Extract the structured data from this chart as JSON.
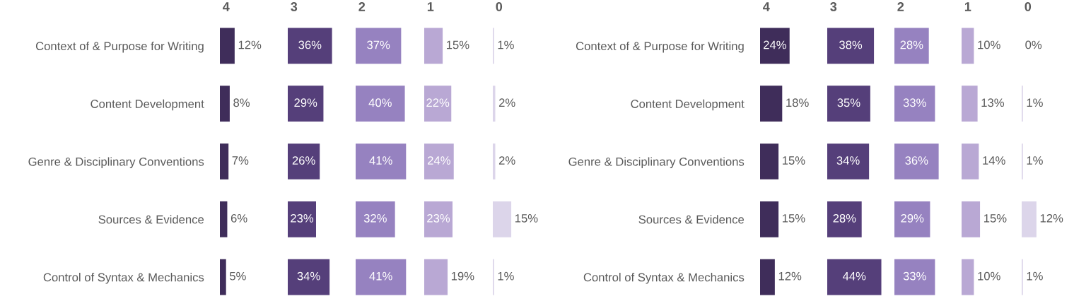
{
  "chart_data": [
    {
      "type": "bar",
      "orientation": "horizontal",
      "title": "4",
      "tick_labels": "y",
      "categories": [
        "Context of & Purpose for Writing",
        "Content Development",
        "Genre & Disciplinary Conventions",
        "Sources & Evidence",
        "Control of Syntax & Mechanics"
      ],
      "values": [
        12,
        8,
        7,
        6,
        5
      ],
      "value_labels": [
        "12%",
        "8%",
        "7%",
        "6%",
        "5%"
      ],
      "color": "#3f2d5a"
    },
    {
      "type": "bar",
      "orientation": "horizontal",
      "title": "3",
      "categories": [
        null,
        null,
        null,
        null,
        null
      ],
      "values": [
        36,
        29,
        26,
        23,
        34
      ],
      "value_labels": [
        "36%",
        "29%",
        "26%",
        "23%",
        "34%"
      ],
      "color": "#553f7a"
    },
    {
      "type": "bar",
      "orientation": "horizontal",
      "title": "2",
      "categories": [
        null,
        null,
        null,
        null,
        null
      ],
      "values": [
        37,
        40,
        41,
        32,
        41
      ],
      "value_labels": [
        "37%",
        "40%",
        "41%",
        "32%",
        "41%"
      ],
      "color": "#9682c0"
    },
    {
      "type": "bar",
      "orientation": "horizontal",
      "title": "1",
      "categories": [
        null,
        null,
        null,
        null,
        null
      ],
      "values": [
        15,
        22,
        24,
        23,
        19
      ],
      "value_labels": [
        "15%",
        "22%",
        "24%",
        "23%",
        "19%"
      ],
      "color": "#b9a8d4"
    },
    {
      "type": "bar",
      "orientation": "horizontal",
      "title": "0",
      "categories": [
        null,
        null,
        null,
        null,
        null
      ],
      "values": [
        1,
        2,
        2,
        15,
        1
      ],
      "value_labels": [
        "1%",
        "2%",
        "2%",
        "15%",
        "1%"
      ],
      "color": "#dcd5ea"
    },
    {
      "type": "bar",
      "orientation": "horizontal",
      "title": "4",
      "tick_labels": "y",
      "categories": [
        "Context of & Purpose for Writing",
        "Content Development",
        "Genre & Disciplinary Conventions",
        "Sources & Evidence",
        "Control of Syntax & Mechanics"
      ],
      "values": [
        24,
        18,
        15,
        15,
        12
      ],
      "value_labels": [
        "24%",
        "18%",
        "15%",
        "15%",
        "12%"
      ],
      "color": "#3f2d5a"
    },
    {
      "type": "bar",
      "orientation": "horizontal",
      "title": "3",
      "categories": [
        null,
        null,
        null,
        null,
        null
      ],
      "values": [
        38,
        35,
        34,
        28,
        44
      ],
      "value_labels": [
        "38%",
        "35%",
        "34%",
        "28%",
        "44%"
      ],
      "color": "#553f7a"
    },
    {
      "type": "bar",
      "orientation": "horizontal",
      "title": "2",
      "categories": [
        null,
        null,
        null,
        null,
        null
      ],
      "values": [
        28,
        33,
        36,
        29,
        33
      ],
      "value_labels": [
        "28%",
        "33%",
        "36%",
        "29%",
        "33%"
      ],
      "color": "#9682c0"
    },
    {
      "type": "bar",
      "orientation": "horizontal",
      "title": "1",
      "categories": [
        null,
        null,
        null,
        null,
        null
      ],
      "values": [
        10,
        13,
        14,
        15,
        10
      ],
      "value_labels": [
        "10%",
        "13%",
        "14%",
        "15%",
        "10%"
      ],
      "color": "#b9a8d4"
    },
    {
      "type": "bar",
      "orientation": "horizontal",
      "title": "0",
      "categories": [
        null,
        null,
        null,
        null,
        null
      ],
      "values": [
        0,
        1,
        1,
        12,
        1
      ],
      "value_labels": [
        "0%",
        "1%",
        "1%",
        "12%",
        "1%"
      ],
      "color": "#dcd5ea"
    }
  ]
}
